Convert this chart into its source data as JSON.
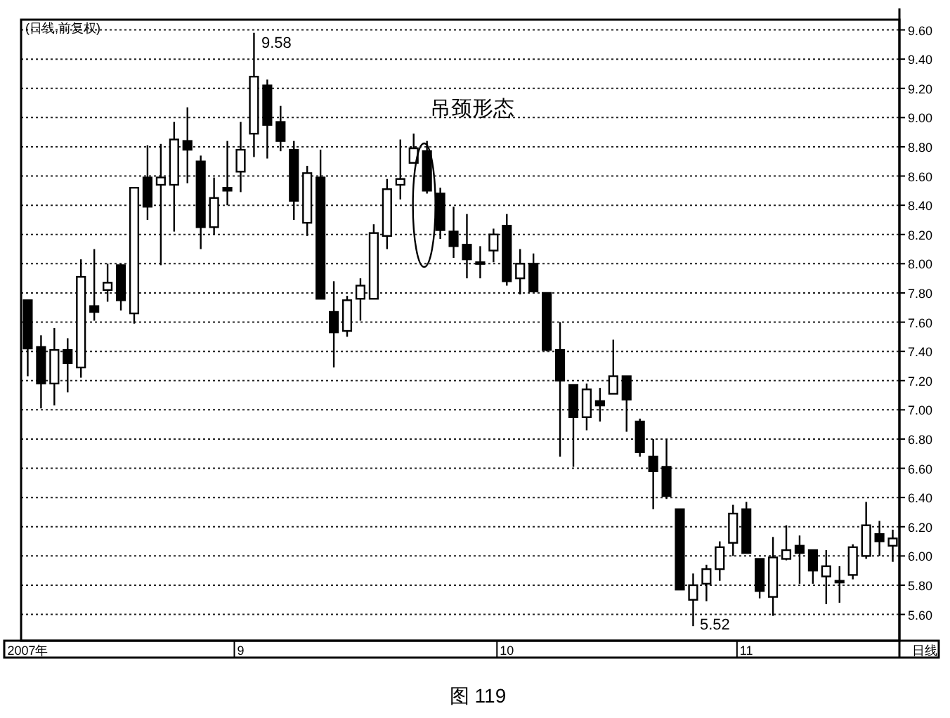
{
  "chart_data": {
    "type": "candlestick",
    "title": "(日线,前复权)",
    "categories": [
      "2007年",
      null,
      null,
      null,
      null,
      null,
      null,
      null,
      null,
      null,
      null,
      null,
      null,
      null,
      null,
      null,
      "9",
      null,
      null,
      null,
      null,
      null,
      null,
      null,
      null,
      null,
      null,
      null,
      null,
      null,
      null,
      null,
      null,
      null,
      null,
      null,
      "10",
      null,
      null,
      null,
      null,
      null,
      null,
      null,
      null,
      null,
      null,
      null,
      null,
      null,
      null,
      null,
      null,
      null,
      "11",
      null,
      null,
      null,
      null,
      null,
      null,
      null,
      null,
      null,
      null,
      null
    ],
    "ohlc": [
      [
        7.75,
        7.75,
        7.23,
        7.42
      ],
      [
        7.43,
        7.51,
        7.01,
        7.18
      ],
      [
        7.18,
        7.56,
        7.03,
        7.41
      ],
      [
        7.41,
        7.49,
        7.12,
        7.32
      ],
      [
        7.29,
        8.03,
        7.22,
        7.91
      ],
      [
        7.71,
        8.1,
        7.61,
        7.67
      ],
      [
        7.82,
        8.0,
        7.74,
        7.87
      ],
      [
        7.99,
        8.0,
        7.68,
        7.75
      ],
      [
        7.66,
        8.52,
        7.59,
        8.52
      ],
      [
        8.59,
        8.81,
        8.3,
        8.39
      ],
      [
        8.54,
        8.82,
        7.99,
        8.59
      ],
      [
        8.54,
        8.97,
        8.22,
        8.85
      ],
      [
        8.84,
        9.07,
        8.55,
        8.78
      ],
      [
        8.7,
        8.74,
        8.1,
        8.25
      ],
      [
        8.25,
        8.59,
        8.2,
        8.45
      ],
      [
        8.52,
        8.84,
        8.4,
        8.5
      ],
      [
        8.63,
        8.97,
        8.49,
        8.78
      ],
      [
        8.89,
        9.58,
        8.73,
        9.28
      ],
      [
        9.22,
        9.26,
        8.72,
        8.95
      ],
      [
        8.97,
        9.08,
        8.77,
        8.84
      ],
      [
        8.78,
        8.84,
        8.3,
        8.43
      ],
      [
        8.28,
        8.67,
        8.19,
        8.62
      ],
      [
        8.59,
        8.78,
        7.76,
        7.76
      ],
      [
        7.67,
        7.88,
        7.29,
        7.53
      ],
      [
        7.54,
        7.78,
        7.5,
        7.75
      ],
      [
        7.76,
        7.9,
        7.61,
        7.85
      ],
      [
        7.76,
        8.27,
        7.76,
        8.21
      ],
      [
        8.19,
        8.58,
        8.1,
        8.51
      ],
      [
        8.54,
        8.85,
        8.44,
        8.58
      ],
      [
        8.69,
        8.89,
        8.69,
        8.79
      ],
      [
        8.77,
        8.84,
        8.48,
        8.5
      ],
      [
        8.48,
        8.52,
        8.17,
        8.23
      ],
      [
        8.22,
        8.39,
        8.04,
        8.12
      ],
      [
        8.13,
        8.34,
        7.9,
        8.03
      ],
      [
        8.01,
        8.12,
        7.9,
        8.01
      ],
      [
        8.09,
        8.24,
        8.01,
        8.2
      ],
      [
        8.26,
        8.34,
        7.85,
        7.88
      ],
      [
        7.9,
        8.1,
        7.79,
        8.0
      ],
      [
        8.0,
        8.07,
        7.81,
        7.81
      ],
      [
        7.8,
        7.8,
        7.4,
        7.41
      ],
      [
        7.41,
        7.6,
        6.68,
        7.2
      ],
      [
        7.17,
        7.17,
        6.61,
        6.95
      ],
      [
        6.95,
        7.18,
        6.86,
        7.14
      ],
      [
        7.06,
        7.15,
        6.92,
        7.03
      ],
      [
        7.11,
        7.48,
        7.11,
        7.23
      ],
      [
        7.23,
        7.23,
        6.85,
        7.07
      ],
      [
        6.92,
        6.94,
        6.68,
        6.71
      ],
      [
        6.68,
        6.8,
        6.32,
        6.58
      ],
      [
        6.61,
        6.8,
        6.39,
        6.41
      ],
      [
        6.32,
        6.32,
        5.77,
        5.77
      ],
      [
        5.7,
        5.88,
        5.52,
        5.8
      ],
      [
        5.81,
        5.94,
        5.69,
        5.91
      ],
      [
        5.91,
        6.1,
        5.83,
        6.06
      ],
      [
        6.09,
        6.35,
        6.0,
        6.29
      ],
      [
        6.32,
        6.37,
        6.02,
        6.02
      ],
      [
        5.98,
        5.98,
        5.71,
        5.76
      ],
      [
        5.72,
        6.13,
        5.59,
        5.99
      ],
      [
        5.98,
        6.21,
        5.97,
        6.04
      ],
      [
        6.07,
        6.14,
        5.81,
        6.02
      ],
      [
        6.04,
        6.04,
        5.81,
        5.9
      ],
      [
        5.86,
        6.04,
        5.67,
        5.93
      ],
      [
        5.83,
        5.93,
        5.68,
        5.82
      ],
      [
        5.87,
        6.08,
        5.84,
        6.06
      ],
      [
        6.0,
        6.37,
        5.98,
        6.21
      ],
      [
        6.15,
        6.24,
        6.0,
        6.1
      ],
      [
        6.07,
        6.18,
        5.96,
        6.12
      ]
    ],
    "ylim": [
      5.42,
      9.67
    ],
    "yticks": [
      {
        "value": 5.6,
        "label": "5.60"
      },
      {
        "value": 5.8,
        "label": "5.80"
      },
      {
        "value": 6.0,
        "label": "6.00"
      },
      {
        "value": 6.2,
        "label": "6.20"
      },
      {
        "value": 6.4,
        "label": "6.40"
      },
      {
        "value": 6.6,
        "label": "6.60"
      },
      {
        "value": 6.8,
        "label": "6.80"
      },
      {
        "value": 7.0,
        "label": "7.00"
      },
      {
        "value": 7.2,
        "label": "7.20"
      },
      {
        "value": 7.4,
        "label": "7.40"
      },
      {
        "value": 7.6,
        "label": "7.60"
      },
      {
        "value": 7.8,
        "label": "7.80"
      },
      {
        "value": 8.0,
        "label": "8.00"
      },
      {
        "value": 8.2,
        "label": "8.20"
      },
      {
        "value": 8.4,
        "label": "8.40"
      },
      {
        "value": 8.6,
        "label": "8.60"
      },
      {
        "value": 8.8,
        "label": "8.80"
      },
      {
        "value": 9.0,
        "label": "9.00"
      },
      {
        "value": 9.2,
        "label": "9.20"
      },
      {
        "value": 9.4,
        "label": "9.40"
      },
      {
        "value": 9.6,
        "label": "9.60"
      }
    ],
    "grid": "y",
    "annotations": [
      "吊颈形态",
      "9.58",
      "5.52",
      "日线",
      "图 119"
    ]
  }
}
